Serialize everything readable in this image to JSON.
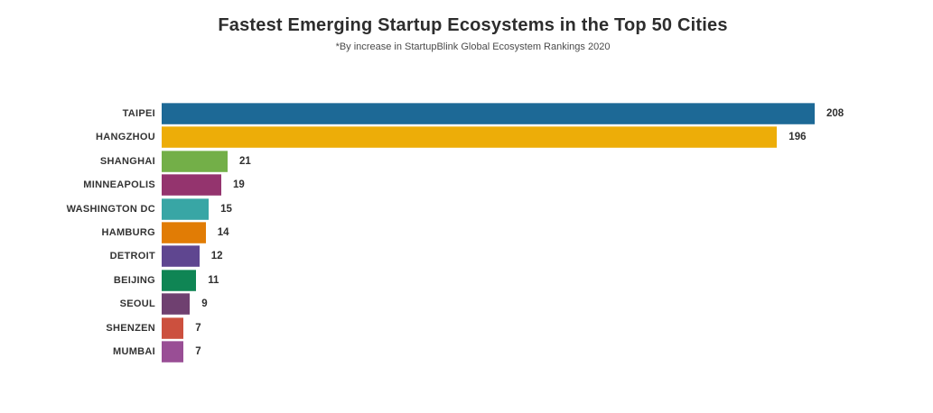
{
  "chart_data": {
    "type": "bar",
    "orientation": "horizontal",
    "title": "Fastest Emerging Startup Ecosystems in the Top 50 Cities",
    "subtitle": "*By increase in StartupBlink Global Ecosystem Rankings 2020",
    "categories": [
      "TAIPEI",
      "HANGZHOU",
      "SHANGHAI",
      "MINNEAPOLIS",
      "WASHINGTON DC",
      "HAMBURG",
      "DETROIT",
      "BEIJING",
      "SEOUL",
      "SHENZEN",
      "MUMBAI"
    ],
    "values": [
      208,
      196,
      21,
      19,
      15,
      14,
      12,
      11,
      9,
      7,
      7
    ],
    "value_labels": [
      "208",
      "196",
      "21",
      "19",
      "15",
      "14",
      "12",
      "11",
      "9",
      "7",
      "7"
    ],
    "bar_colors": [
      "#1D6996",
      "#EDAD08",
      "#73AF48",
      "#94346E",
      "#38A6A5",
      "#E17C05",
      "#5F4690",
      "#0F8554",
      "#6F4070",
      "#CC503E",
      "#994E95"
    ],
    "xlim": [
      0,
      208
    ],
    "grid": false,
    "legend": false,
    "axes_visible": false,
    "value_label_position": "right-of-bar",
    "background_color": "#ffffff",
    "title_color": "#2d2d2d",
    "subtitle_color": "#4a4a4a",
    "label_color": "#333333"
  }
}
